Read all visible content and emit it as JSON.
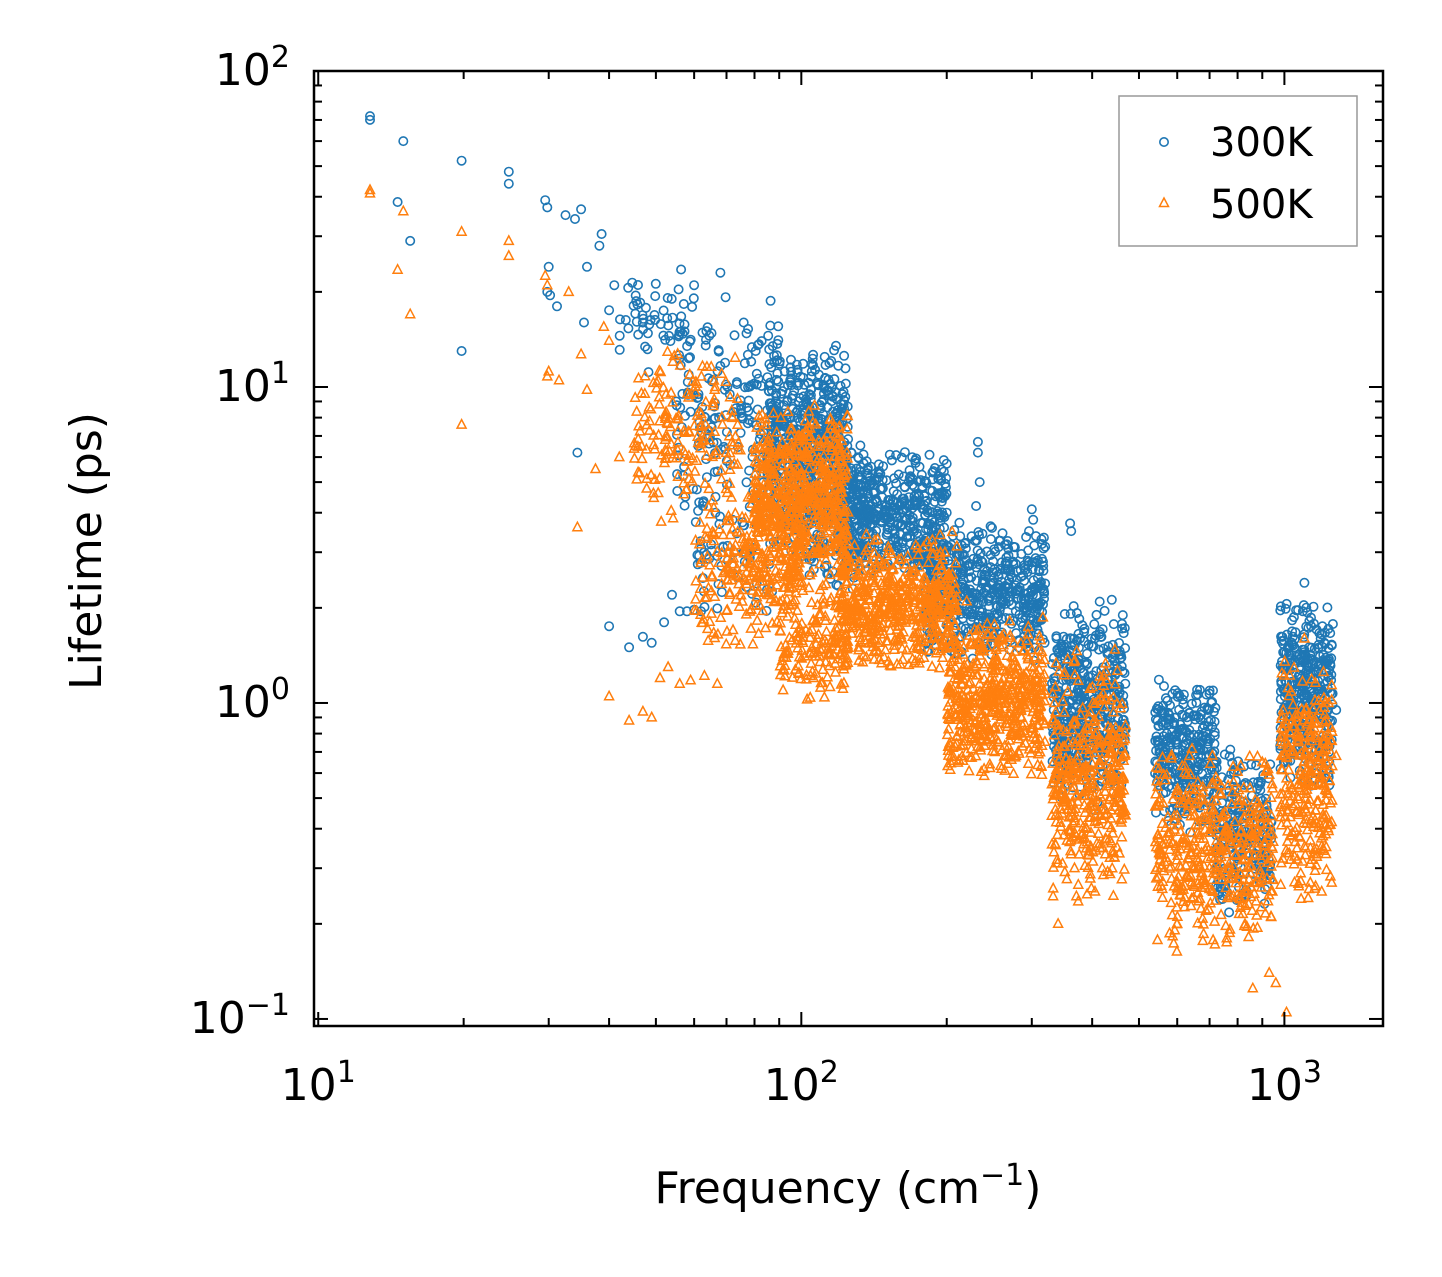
{
  "chart_data": {
    "type": "scatter",
    "xscale": "log",
    "yscale": "log",
    "xlim": [
      9.8,
      1600
    ],
    "ylim": [
      0.095,
      100
    ],
    "xlabel": {
      "main": "Frequency (cm",
      "sup": "−1",
      "close": ")"
    },
    "ylabel": "Lifetime (ps)",
    "xticks": [
      {
        "value": 10,
        "base": "10",
        "exp": "1"
      },
      {
        "value": 100,
        "base": "10",
        "exp": "2"
      },
      {
        "value": 1000,
        "base": "10",
        "exp": "3"
      }
    ],
    "yticks": [
      {
        "value": 0.1,
        "base": "10",
        "exp": "−1"
      },
      {
        "value": 1,
        "base": "10",
        "exp": "0"
      },
      {
        "value": 10,
        "base": "10",
        "exp": "1"
      },
      {
        "value": 100,
        "base": "10",
        "exp": "2"
      }
    ],
    "legend": {
      "position": "top-right"
    },
    "series": [
      {
        "name": "300K",
        "marker": "circle",
        "color": "#1f77b4",
        "points": [
          [
            12.8,
            72
          ],
          [
            12.8,
            70
          ],
          [
            14.6,
            38.5
          ],
          [
            15,
            60
          ],
          [
            15.5,
            29
          ],
          [
            19.8,
            52
          ],
          [
            19.8,
            13
          ],
          [
            24.8,
            48
          ],
          [
            24.8,
            44
          ],
          [
            29.5,
            39
          ],
          [
            29.8,
            37
          ],
          [
            30,
            24
          ],
          [
            29.8,
            20
          ],
          [
            30.2,
            19.5
          ],
          [
            31.2,
            18
          ],
          [
            32.5,
            35
          ],
          [
            34,
            34
          ],
          [
            35,
            36.5
          ],
          [
            35.5,
            16
          ],
          [
            36,
            24
          ],
          [
            38.2,
            28
          ],
          [
            38.6,
            30.5
          ],
          [
            40,
            17.5
          ],
          [
            41,
            21
          ],
          [
            34.4,
            6.2
          ],
          [
            40,
            1.75
          ],
          [
            44,
            1.5
          ],
          [
            47,
            1.62
          ],
          [
            49,
            1.55
          ],
          [
            52,
            1.8
          ],
          [
            54,
            2.2
          ],
          [
            56,
            1.95
          ],
          [
            58,
            1.95
          ],
          [
            62,
            1.95
          ]
        ],
        "clusters": [
          {
            "x": [
              42,
              60
            ],
            "y": [
              10,
              26
            ],
            "n": 60
          },
          {
            "x": [
              55,
              90
            ],
            "y": [
              3.5,
              20
            ],
            "n": 180
          },
          {
            "x": [
              60,
              90
            ],
            "y": [
              1.9,
              5
            ],
            "n": 60
          },
          {
            "x": [
              85,
              125
            ],
            "y": [
              3.5,
              14
            ],
            "n": 450
          },
          {
            "x": [
              90,
              140
            ],
            "y": [
              2.2,
              7
            ],
            "n": 250
          },
          {
            "x": [
              120,
              200
            ],
            "y": [
              2.4,
              6.5
            ],
            "n": 450
          },
          {
            "x": [
              180,
              320
            ],
            "y": [
              1.3,
              3.8
            ],
            "n": 550
          },
          {
            "x": [
              330,
              470
            ],
            "y": [
              0.45,
              2.2
            ],
            "n": 450
          },
          {
            "x": [
              540,
              720
            ],
            "y": [
              0.38,
              1.2
            ],
            "n": 320
          },
          {
            "x": [
              720,
              940
            ],
            "y": [
              0.2,
              0.75
            ],
            "n": 220
          },
          {
            "x": [
              980,
              1260
            ],
            "y": [
              0.5,
              2.3
            ],
            "n": 360
          }
        ],
        "outliers": [
          [
            232,
            6.7
          ],
          [
            232,
            6.2
          ],
          [
            234,
            5
          ],
          [
            200,
            4
          ],
          [
            230,
            4.2
          ],
          [
            300,
            4.1
          ],
          [
            302,
            3.8
          ],
          [
            360,
            3.7
          ],
          [
            362,
            3.5
          ],
          [
            1280,
            0.95
          ],
          [
            1100,
            2.4
          ],
          [
            1000,
            1.45
          ],
          [
            118,
            13.5
          ],
          [
            68,
            23
          ],
          [
            60,
            21
          ],
          [
            76,
            16
          ]
        ]
      },
      {
        "name": "500K",
        "marker": "triangle",
        "color": "#ff7f0e",
        "points": [
          [
            12.8,
            42
          ],
          [
            12.8,
            41
          ],
          [
            14.6,
            23.5
          ],
          [
            15,
            36
          ],
          [
            15.5,
            17
          ],
          [
            19.8,
            31
          ],
          [
            19.8,
            7.6
          ],
          [
            24.8,
            29
          ],
          [
            24.8,
            26
          ],
          [
            29.5,
            22.5
          ],
          [
            29.8,
            21
          ],
          [
            30,
            11.2
          ],
          [
            29.8,
            10.8
          ],
          [
            31.5,
            10.5
          ],
          [
            33,
            20
          ],
          [
            34.4,
            3.6
          ],
          [
            35,
            12.7
          ],
          [
            36,
            9.8
          ],
          [
            39,
            15.5
          ],
          [
            40,
            14
          ],
          [
            37.5,
            5.5
          ],
          [
            42,
            6
          ],
          [
            40,
            1.05
          ],
          [
            44,
            0.88
          ],
          [
            47,
            0.94
          ],
          [
            49,
            0.9
          ],
          [
            51,
            1.2
          ],
          [
            53,
            1.3
          ],
          [
            56,
            1.15
          ],
          [
            59,
            1.18
          ],
          [
            63,
            1.22
          ],
          [
            67,
            1.15
          ]
        ],
        "clusters": [
          {
            "x": [
              45,
              75
            ],
            "y": [
              3.5,
              14
            ],
            "n": 180
          },
          {
            "x": [
              60,
              80
            ],
            "y": [
              1.3,
              5
            ],
            "n": 80
          },
          {
            "x": [
              70,
              100
            ],
            "y": [
              1.6,
              5
            ],
            "n": 180
          },
          {
            "x": [
              80,
              125
            ],
            "y": [
              2.2,
              9
            ],
            "n": 600
          },
          {
            "x": [
              90,
              125
            ],
            "y": [
              1.0,
              2.4
            ],
            "n": 160
          },
          {
            "x": [
              120,
              210
            ],
            "y": [
              1.2,
              3.5
            ],
            "n": 550
          },
          {
            "x": [
              200,
              320
            ],
            "y": [
              0.55,
              1.9
            ],
            "n": 550
          },
          {
            "x": [
              330,
              470
            ],
            "y": [
              0.22,
              1.5
            ],
            "n": 420
          },
          {
            "x": [
              540,
              950
            ],
            "y": [
              0.16,
              0.75
            ],
            "n": 460
          },
          {
            "x": [
              980,
              1260
            ],
            "y": [
              0.22,
              1.5
            ],
            "n": 300
          }
        ],
        "outliers": [
          [
            1010,
            0.105
          ],
          [
            860,
            0.125
          ],
          [
            340,
            0.2
          ],
          [
            600,
            0.2
          ],
          [
            930,
            0.14
          ],
          [
            120,
            7.5
          ],
          [
            125,
            2.9
          ],
          [
            130,
            1.75
          ],
          [
            1280,
            0.68
          ],
          [
            1100,
            1.6
          ],
          [
            960,
            0.13
          ],
          [
            220,
            2.1
          ]
        ]
      }
    ]
  }
}
